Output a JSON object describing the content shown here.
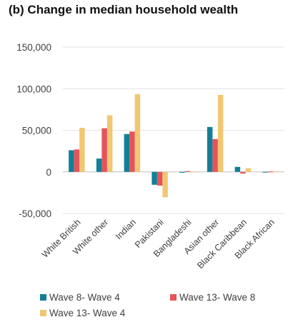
{
  "chart_data": {
    "type": "bar",
    "title": "(b) Change in median household wealth",
    "categories": [
      "White British",
      "White other",
      "Indian",
      "Pakistani",
      "Bangladeshi",
      "Asian other",
      "Black Caribbean",
      "Black African"
    ],
    "series": [
      {
        "name": "Wave 8- Wave 4",
        "color": "#127F96",
        "values": [
          26000,
          16000,
          45500,
          -15500,
          -1000,
          54000,
          6000,
          -500
        ]
      },
      {
        "name": "Wave 13- Wave 8",
        "color": "#E5545A",
        "values": [
          27000,
          52500,
          48500,
          -16500,
          1000,
          39500,
          -2000,
          500
        ]
      },
      {
        "name": "Wave 13- Wave 4",
        "color": "#F2C774",
        "values": [
          53000,
          68000,
          93500,
          -30500,
          500,
          92500,
          4500,
          500
        ]
      }
    ],
    "yticks": [
      "150,000",
      "100,000",
      "50,000",
      "0",
      "-50,000"
    ],
    "ylim": [
      -50000,
      150000
    ],
    "grid": true,
    "legend_position": "bottom"
  }
}
